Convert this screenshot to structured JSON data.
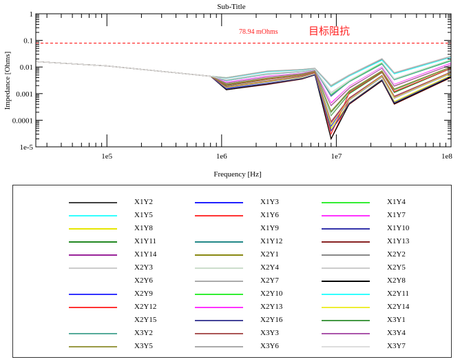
{
  "chart_data": {
    "type": "line",
    "title": "Sub-Title",
    "xlabel": "Frequency [Hz]",
    "ylabel": "Impedance [Ohms]",
    "xscale": "log",
    "yscale": "log",
    "xlim": [
      24000,
      100000000
    ],
    "ylim": [
      1e-05,
      1
    ],
    "xticks": [
      {
        "v": 100000,
        "label": "1e5"
      },
      {
        "v": 1000000,
        "label": "1e6"
      },
      {
        "v": 10000000,
        "label": "1e7"
      },
      {
        "v": 100000000,
        "label": "1e8"
      }
    ],
    "yticks": [
      {
        "v": 1,
        "label": "1"
      },
      {
        "v": 0.1,
        "label": "0.1"
      },
      {
        "v": 0.01,
        "label": "0.01"
      },
      {
        "v": 0.001,
        "label": "0.001"
      },
      {
        "v": 0.0001,
        "label": "0.0001"
      },
      {
        "v": 1e-05,
        "label": "1e-5"
      }
    ],
    "target": {
      "value": 0.07894,
      "label": "78.94 mOhms",
      "note": "目标阻抗",
      "color": "#ff2020"
    },
    "legend_position": "below",
    "x": [
      24000,
      100000,
      800000,
      1100000,
      2500000,
      5000000,
      6500000,
      9000000,
      13000000,
      25000000,
      32000000,
      100000000
    ],
    "series": [
      {
        "name": "X1Y2",
        "color": "#404040",
        "values": [
          0.016,
          0.011,
          0.0045,
          0.0021,
          0.0035,
          0.005,
          0.0066,
          0.00016,
          0.0011,
          0.0065,
          0.0012,
          0.009
        ]
      },
      {
        "name": "X1Y3",
        "color": "#2020ff",
        "values": [
          0.016,
          0.011,
          0.0045,
          0.0026,
          0.0044,
          0.0059,
          0.0074,
          0.0004,
          0.0018,
          0.0095,
          0.0021,
          0.013
        ]
      },
      {
        "name": "X1Y4",
        "color": "#33ee33",
        "values": [
          0.016,
          0.011,
          0.0045,
          0.004,
          0.007,
          0.008,
          0.009,
          0.002,
          0.005,
          0.02,
          0.006,
          0.025
        ]
      },
      {
        "name": "X1Y5",
        "color": "#33ffff",
        "values": [
          0.016,
          0.011,
          0.0045,
          0.0033,
          0.0057,
          0.007,
          0.0083,
          0.001,
          0.0031,
          0.015,
          0.0036,
          0.019
        ]
      },
      {
        "name": "X1Y6",
        "color": "#ff3333",
        "values": [
          0.016,
          0.011,
          0.0045,
          0.0017,
          0.0028,
          0.0043,
          0.0059,
          2e-05,
          0.0006,
          0.0044,
          0.0007,
          0.006
        ]
      },
      {
        "name": "X1Y7",
        "color": "#ff33ff",
        "values": [
          0.016,
          0.011,
          0.0045,
          0.0027,
          0.0045,
          0.006,
          0.0075,
          0.00045,
          0.0019,
          0.01,
          0.0022,
          0.014
        ]
      },
      {
        "name": "X1Y8",
        "color": "#e6e600",
        "values": [
          0.016,
          0.011,
          0.0045,
          0.0015,
          0.0024,
          0.0038,
          0.0052,
          5e-05,
          0.00045,
          0.0034,
          0.0005,
          0.0048
        ]
      },
      {
        "name": "X1Y9",
        "color": "#ffffff",
        "values": [
          0.016,
          0.011,
          0.0045,
          0.0022,
          0.0036,
          0.0051,
          0.0067,
          0.00018,
          0.0012,
          0.0068,
          0.0013,
          0.0095
        ]
      },
      {
        "name": "X1Y10",
        "color": "#3333aa",
        "values": [
          0.016,
          0.011,
          0.0045,
          0.0031,
          0.0055,
          0.0068,
          0.0081,
          0.0008,
          0.0029,
          0.013,
          0.0034,
          0.017
        ]
      },
      {
        "name": "X1Y11",
        "color": "#228822",
        "values": [
          0.016,
          0.011,
          0.0045,
          0.002,
          0.0034,
          0.0049,
          0.0065,
          0.00015,
          0.001,
          0.0062,
          0.0011,
          0.0088
        ]
      },
      {
        "name": "X1Y12",
        "color": "#228888",
        "values": [
          0.016,
          0.011,
          0.0045,
          0.0039,
          0.0068,
          0.0079,
          0.0088,
          0.0019,
          0.0048,
          0.019,
          0.0058,
          0.024
        ]
      },
      {
        "name": "X1Y13",
        "color": "#882222",
        "values": [
          0.016,
          0.011,
          0.0045,
          0.0014,
          0.0022,
          0.0035,
          0.005,
          4e-05,
          0.0004,
          0.003,
          0.0004,
          0.004
        ]
      },
      {
        "name": "X1Y14",
        "color": "#992299",
        "values": [
          0.016,
          0.011,
          0.0045,
          0.0018,
          0.0029,
          0.0044,
          0.006,
          8e-05,
          0.00065,
          0.0046,
          0.00075,
          0.0063
        ]
      },
      {
        "name": "X2Y1",
        "color": "#888811",
        "values": [
          0.016,
          0.011,
          0.0045,
          0.0025,
          0.0043,
          0.0058,
          0.0073,
          0.00038,
          0.0017,
          0.0092,
          0.002,
          0.0125
        ]
      },
      {
        "name": "X2Y2",
        "color": "#888888",
        "values": [
          0.016,
          0.011,
          0.0045,
          0.0032,
          0.0056,
          0.0069,
          0.0082,
          0.0009,
          0.003,
          0.014,
          0.0035,
          0.018
        ]
      },
      {
        "name": "X2Y3",
        "color": "#cccccc",
        "values": [
          0.016,
          0.011,
          0.0045,
          0.004,
          0.0071,
          0.0081,
          0.0091,
          0.0021,
          0.0052,
          0.021,
          0.0062,
          0.026
        ]
      },
      {
        "name": "X2Y4",
        "color": "#ccddcc",
        "values": [
          0.016,
          0.011,
          0.0045,
          0.0021,
          0.0035,
          0.005,
          0.0066,
          0.00016,
          0.0011,
          0.0065,
          0.0012,
          0.009
        ]
      },
      {
        "name": "X2Y5",
        "color": "#cccccc",
        "values": [
          0.016,
          0.011,
          0.0045,
          0.0034,
          0.0058,
          0.0071,
          0.0084,
          0.0011,
          0.0032,
          0.015,
          0.0037,
          0.019
        ]
      },
      {
        "name": "X2Y6",
        "color": "#ffffff",
        "values": [
          0.016,
          0.011,
          0.0045,
          0.0017,
          0.0028,
          0.0043,
          0.0059,
          7e-05,
          0.0006,
          0.0044,
          0.0007,
          0.006
        ]
      },
      {
        "name": "X2Y7",
        "color": "#aaaaaa",
        "values": [
          0.016,
          0.011,
          0.0045,
          0.0026,
          0.0044,
          0.0059,
          0.0074,
          0.0004,
          0.0018,
          0.0095,
          0.0021,
          0.013
        ]
      },
      {
        "name": "X2Y8",
        "color": "#000000",
        "values": [
          0.016,
          0.011,
          0.0045,
          0.0014,
          0.0023,
          0.0036,
          0.0051,
          2e-05,
          0.00042,
          0.0031,
          0.00042,
          0.0042
        ]
      },
      {
        "name": "X2Y9",
        "color": "#3333ff",
        "values": [
          0.016,
          0.011,
          0.0045,
          0.0016,
          0.0027,
          0.0042,
          0.0058,
          6e-05,
          0.00058,
          0.0042,
          0.00068,
          0.0058
        ]
      },
      {
        "name": "X2Y10",
        "color": "#33ee33",
        "values": [
          0.016,
          0.011,
          0.0045,
          0.0032,
          0.0056,
          0.0069,
          0.0082,
          0.0009,
          0.003,
          0.014,
          0.0035,
          0.018
        ]
      },
      {
        "name": "X2Y11",
        "color": "#33ffff",
        "values": [
          0.016,
          0.011,
          0.0045,
          0.0038,
          0.0066,
          0.0078,
          0.0087,
          0.0018,
          0.0046,
          0.018,
          0.0055,
          0.023
        ]
      },
      {
        "name": "X2Y12",
        "color": "#ff3333",
        "values": [
          0.016,
          0.011,
          0.0045,
          0.0021,
          0.0035,
          0.005,
          0.0066,
          3e-05,
          0.0011,
          0.0065,
          0.0012,
          0.009
        ]
      },
      {
        "name": "X2Y13",
        "color": "#ff33ff",
        "values": [
          0.016,
          0.011,
          0.0045,
          0.0027,
          0.0046,
          0.006,
          0.0075,
          0.00042,
          0.0019,
          0.0098,
          0.0022,
          0.0135
        ]
      },
      {
        "name": "X2Y14",
        "color": "#eeee33",
        "values": [
          0.016,
          0.011,
          0.0045,
          0.0017,
          0.0028,
          0.0043,
          0.0059,
          7e-05,
          0.0006,
          0.0044,
          0.0007,
          0.006
        ]
      },
      {
        "name": "X2Y15",
        "color": "#ffffff",
        "values": [
          0.016,
          0.011,
          0.0045,
          0.0026,
          0.0044,
          0.0059,
          0.0074,
          0.0004,
          0.0018,
          0.0095,
          0.0021,
          0.013
        ]
      },
      {
        "name": "X2Y16",
        "color": "#444499",
        "values": [
          0.016,
          0.011,
          0.0045,
          0.0015,
          0.0024,
          0.0037,
          0.0052,
          4e-05,
          0.00044,
          0.0033,
          0.00046,
          0.0045
        ]
      },
      {
        "name": "X3Y1",
        "color": "#449944",
        "values": [
          0.016,
          0.011,
          0.0045,
          0.0022,
          0.0037,
          0.0052,
          0.0068,
          0.0002,
          0.0012,
          0.007,
          0.0014,
          0.0098
        ]
      },
      {
        "name": "X3Y2",
        "color": "#55aa99",
        "values": [
          0.016,
          0.011,
          0.0045,
          0.0031,
          0.0054,
          0.0067,
          0.008,
          0.00085,
          0.0028,
          0.013,
          0.0033,
          0.017
        ]
      },
      {
        "name": "X3Y3",
        "color": "#aa5555",
        "values": [
          0.016,
          0.011,
          0.0045,
          0.0018,
          0.003,
          0.0045,
          0.0061,
          9e-05,
          0.0007,
          0.0048,
          0.0008,
          0.0065
        ]
      },
      {
        "name": "X3Y4",
        "color": "#aa55aa",
        "values": [
          0.016,
          0.011,
          0.0045,
          0.0025,
          0.0042,
          0.0057,
          0.0072,
          0.00035,
          0.0016,
          0.009,
          0.0019,
          0.012
        ]
      },
      {
        "name": "X3Y5",
        "color": "#999944",
        "values": [
          0.016,
          0.011,
          0.0045,
          0.0023,
          0.0038,
          0.0053,
          0.0069,
          0.00022,
          0.0013,
          0.0073,
          0.0015,
          0.0102
        ]
      },
      {
        "name": "X3Y6",
        "color": "#aaaaaa",
        "values": [
          0.016,
          0.011,
          0.0045,
          0.0039,
          0.0069,
          0.008,
          0.0089,
          0.0019,
          0.0049,
          0.02,
          0.0059,
          0.0245
        ]
      },
      {
        "name": "X3Y7",
        "color": "#dddddd",
        "values": [
          0.016,
          0.011,
          0.0045,
          0.0033,
          0.0057,
          0.007,
          0.0083,
          0.001,
          0.0031,
          0.015,
          0.0036,
          0.019
        ]
      }
    ]
  }
}
